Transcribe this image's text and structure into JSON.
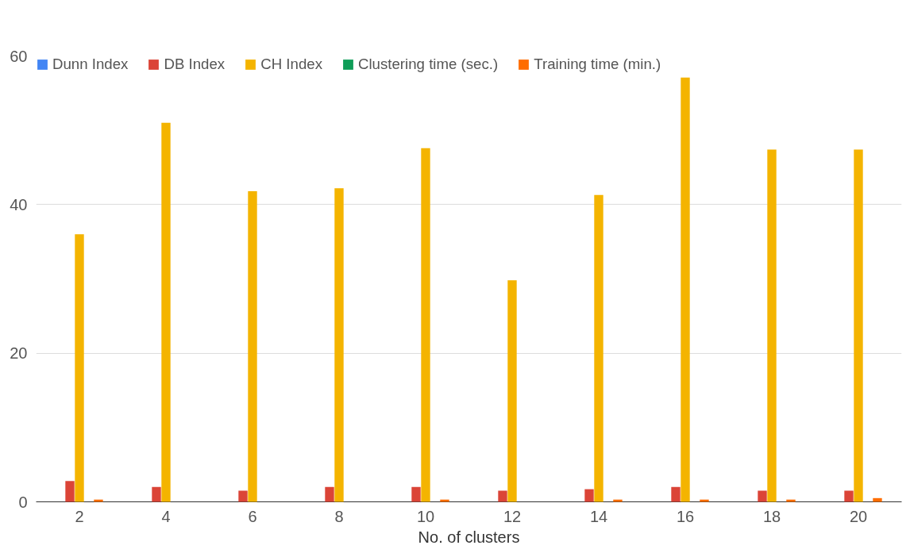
{
  "chart_data": {
    "type": "bar",
    "xlabel": "No. of clusters",
    "categories": [
      "2",
      "4",
      "6",
      "8",
      "10",
      "12",
      "14",
      "16",
      "18",
      "20"
    ],
    "series": [
      {
        "name": "Dunn Index",
        "color": "#4285f4",
        "values": [
          0,
          0,
          0,
          0,
          0,
          0,
          0,
          0,
          0,
          0
        ]
      },
      {
        "name": "DB Index",
        "color": "#db4437",
        "values": [
          2.8,
          2.0,
          1.5,
          2.0,
          2.0,
          1.5,
          1.7,
          2.0,
          1.5,
          1.5
        ]
      },
      {
        "name": "CH Index",
        "color": "#f4b400",
        "values": [
          36,
          51,
          41.8,
          42.2,
          47.6,
          29.8,
          41.3,
          57.1,
          47.4,
          47.4
        ]
      },
      {
        "name": "Clustering time (sec.)",
        "color": "#0f9d58",
        "values": [
          0,
          0,
          0,
          0,
          0,
          0,
          0,
          0,
          0,
          0
        ]
      },
      {
        "name": "Training time (min.)",
        "color": "#ff6d00",
        "values": [
          0.3,
          0,
          0,
          0,
          0.3,
          0,
          0.3,
          0.3,
          0.3,
          0.5
        ]
      }
    ],
    "ylim": [
      0,
      60
    ],
    "yticks": [
      0,
      20,
      40,
      60
    ],
    "grid": "y",
    "legend": "top"
  }
}
